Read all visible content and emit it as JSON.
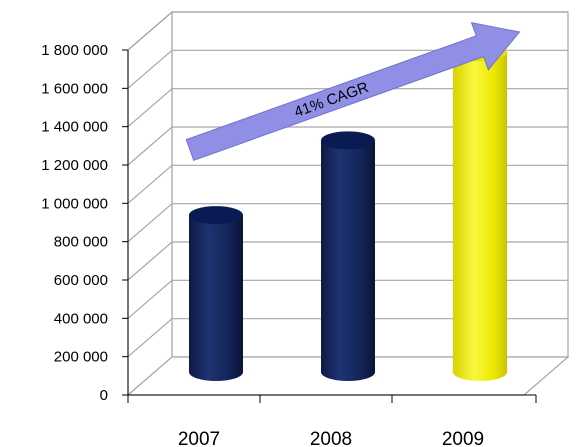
{
  "chart_data": {
    "type": "bar",
    "style": "3d-cylinder",
    "categories": [
      "2007",
      "2008",
      "2009"
    ],
    "values": [
      850000,
      1240000,
      1700000
    ],
    "y_ticks": [
      "0",
      "200 000",
      "400 000",
      "600 000",
      "800 000",
      "1 000 000",
      "1 200 000",
      "1 400 000",
      "1 600 000",
      "1 800 000"
    ],
    "ylim": [
      0,
      1800000
    ],
    "grid": true,
    "legend": "none",
    "colors": {
      "default_bar": "#15265c",
      "highlight_bar": "#f2ee00",
      "arrow": "#8f8fe6"
    },
    "highlight_index": 2,
    "annotation": {
      "text": "41% CAGR"
    }
  }
}
